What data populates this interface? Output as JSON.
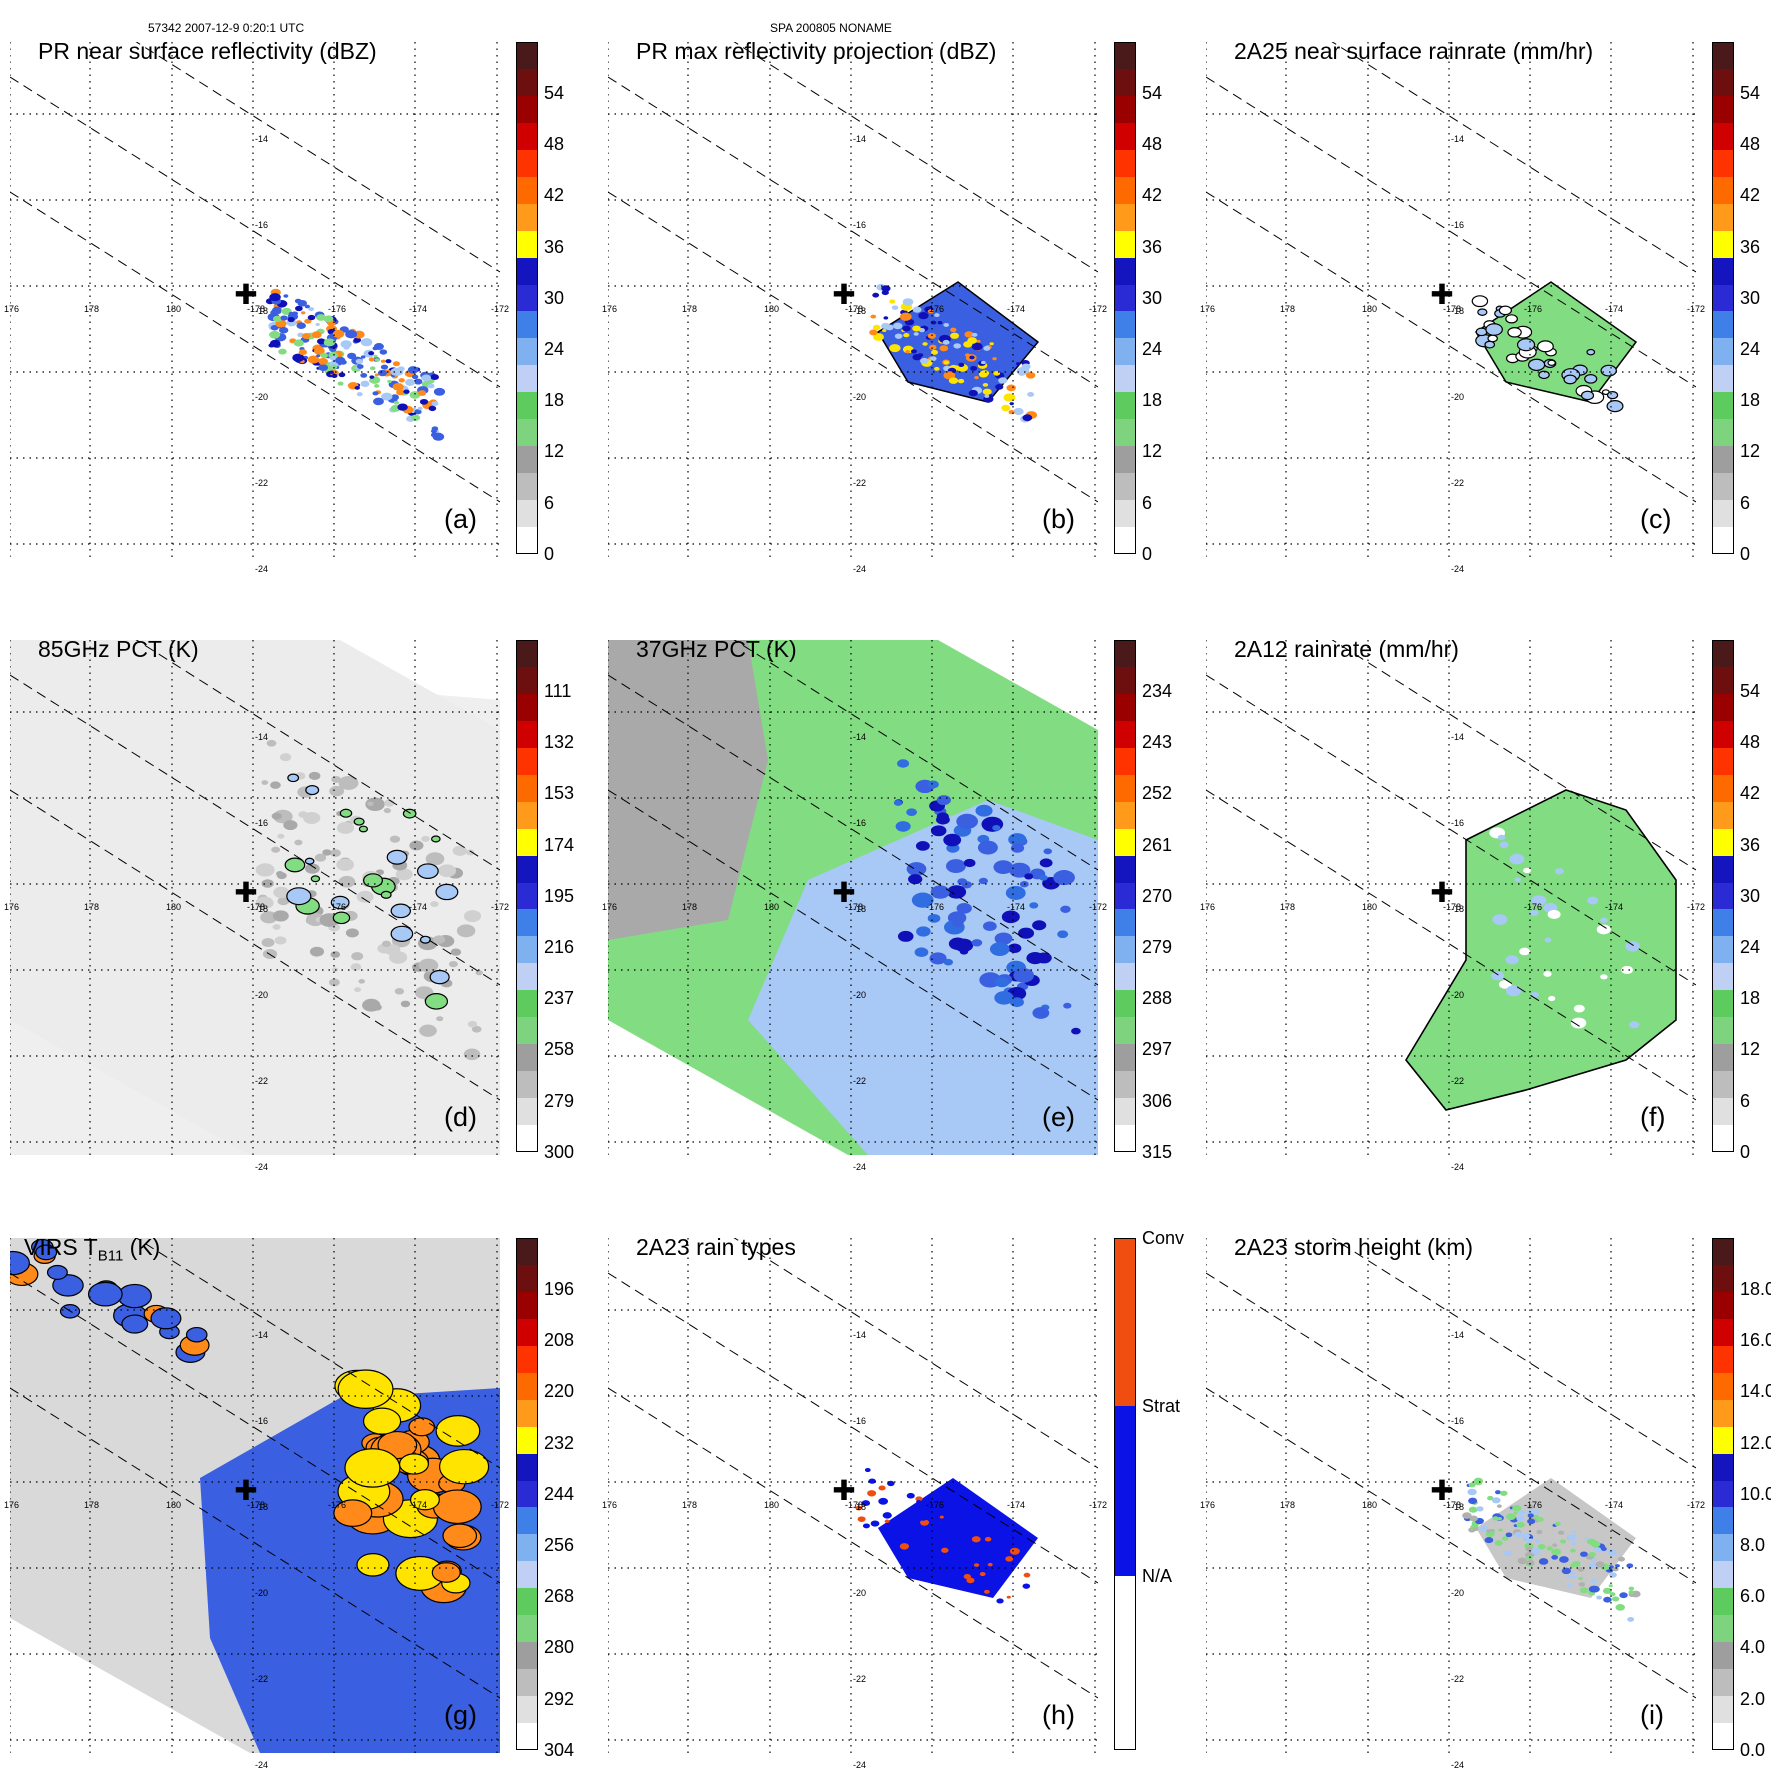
{
  "header": {
    "left": "57342 2007-12-9 0:20:1 UTC",
    "center": "SPA 200805 NONAME"
  },
  "lat_labels": [
    "-14",
    "-16",
    "-18",
    "-20",
    "-22",
    "-24"
  ],
  "lon_labels": [
    "176",
    "178",
    "180",
    "-178",
    "-176",
    "-174",
    "-172"
  ],
  "colors": {
    "bar": [
      "#ffffff",
      "#e0e0e0",
      "#bdbdbd",
      "#9e9e9e",
      "#7ed37e",
      "#5ecb5e",
      "#c0d0f5",
      "#7fb0f0",
      "#3f7fe8",
      "#2b2bd6",
      "#1515c0",
      "#ffff00",
      "#ff9a1a",
      "#ff6a00",
      "#ff3300",
      "#d10000",
      "#9a0000",
      "#6e0f0f",
      "#4a1a1a"
    ],
    "type_bar": [
      "#ffffff",
      "#0a12e6",
      "#f04e10"
    ],
    "land": "#4db34d",
    "rain_green": "#82dc82",
    "blue": "#3a5fe0",
    "dark_blue": "#1010b8",
    "light_blue": "#a8c8f6",
    "orange": "#ff8a1a",
    "yellow": "#ffe400",
    "gray": "#a9a9a9"
  },
  "panels": [
    {
      "id": "a",
      "title": "PR near surface reflectivity (dBZ)",
      "label": "(a)",
      "ticks": [
        "54",
        "48",
        "42",
        "36",
        "30",
        "24",
        "18",
        "12",
        "6",
        "0"
      ]
    },
    {
      "id": "b",
      "title": "PR max reflectivity projection (dBZ)",
      "label": "(b)",
      "ticks": [
        "54",
        "48",
        "42",
        "36",
        "30",
        "24",
        "18",
        "12",
        "6",
        "0"
      ]
    },
    {
      "id": "c",
      "title": "2A25 near surface rainrate (mm/hr)",
      "label": "(c)",
      "ticks": [
        "54",
        "48",
        "42",
        "36",
        "30",
        "24",
        "18",
        "12",
        "6",
        "0"
      ]
    },
    {
      "id": "d",
      "title": "85GHz PCT (K)",
      "label": "(d)",
      "ticks": [
        "111",
        "132",
        "153",
        "174",
        "195",
        "216",
        "237",
        "258",
        "279",
        "300"
      ]
    },
    {
      "id": "e",
      "title": "37GHz PCT (K)",
      "label": "(e)",
      "ticks": [
        "234",
        "243",
        "252",
        "261",
        "270",
        "279",
        "288",
        "297",
        "306",
        "315"
      ]
    },
    {
      "id": "f",
      "title": "2A12 rainrate (mm/hr)",
      "label": "(f)",
      "ticks": [
        "54",
        "48",
        "42",
        "36",
        "30",
        "24",
        "18",
        "12",
        "6",
        "0"
      ]
    },
    {
      "id": "g",
      "title": "VIRS T",
      "title_sub": "B11",
      "title_suffix": "(K)",
      "label": "(g)",
      "ticks": [
        "196",
        "208",
        "220",
        "232",
        "244",
        "256",
        "268",
        "280",
        "292",
        "304"
      ]
    },
    {
      "id": "h",
      "title": "2A23 rain types",
      "label": "(h)",
      "ticks": [
        "Conv",
        "Strat",
        "N/A"
      ]
    },
    {
      "id": "i",
      "title": "2A23 storm height (km)",
      "label": "(i)",
      "ticks": [
        "18.0",
        "16.0",
        "14.0",
        "12.0",
        "10.0",
        "8.0",
        "6.0",
        "4.0",
        "2.0",
        "0.0"
      ]
    }
  ]
}
